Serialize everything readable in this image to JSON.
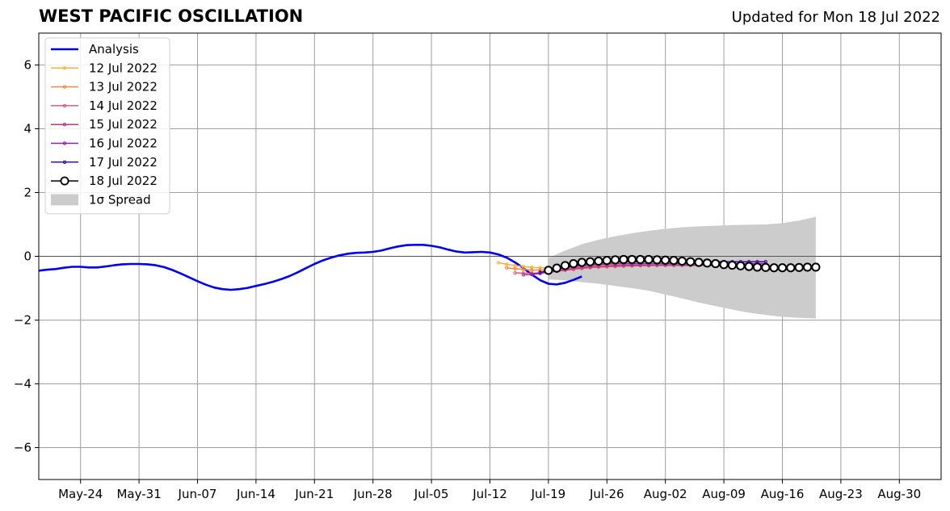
{
  "header": {
    "title": "WEST PACIFIC OSCILLATION",
    "updated": "Updated for Mon 18 Jul 2022"
  },
  "chart_data": {
    "type": "line",
    "title": "WEST PACIFIC OSCILLATION",
    "xlabel": "",
    "ylabel": "",
    "xlim": [
      "2022-05-19",
      "2022-09-04"
    ],
    "ylim": [
      -7,
      7
    ],
    "grid": true,
    "legend_position": "top-left",
    "x_ticks": [
      "May-24",
      "May-31",
      "Jun-07",
      "Jun-14",
      "Jun-21",
      "Jun-28",
      "Jul-05",
      "Jul-12",
      "Jul-19",
      "Jul-26",
      "Aug-02",
      "Aug-09",
      "Aug-16",
      "Aug-23",
      "Aug-30"
    ],
    "x_tick_dates": [
      "2022-05-24",
      "2022-05-31",
      "2022-06-07",
      "2022-06-14",
      "2022-06-21",
      "2022-06-28",
      "2022-07-05",
      "2022-07-12",
      "2022-07-19",
      "2022-07-26",
      "2022-08-02",
      "2022-08-09",
      "2022-08-16",
      "2022-08-23",
      "2022-08-30"
    ],
    "y_ticks": [
      6,
      4,
      2,
      0,
      -2,
      -4,
      -6
    ],
    "y_tick_labels": [
      "6",
      "4",
      "2",
      "0",
      "−2",
      "−4",
      "−6"
    ],
    "series": [
      {
        "name": "Analysis",
        "color": "#0000ee",
        "start": "2022-05-19",
        "values": [
          -0.45,
          -0.42,
          -0.4,
          -0.36,
          -0.33,
          -0.33,
          -0.35,
          -0.35,
          -0.32,
          -0.28,
          -0.25,
          -0.24,
          -0.24,
          -0.25,
          -0.28,
          -0.34,
          -0.43,
          -0.54,
          -0.66,
          -0.78,
          -0.89,
          -0.98,
          -1.03,
          -1.05,
          -1.03,
          -0.99,
          -0.93,
          -0.87,
          -0.8,
          -0.72,
          -0.62,
          -0.5,
          -0.37,
          -0.24,
          -0.13,
          -0.04,
          0.03,
          0.08,
          0.11,
          0.12,
          0.14,
          0.18,
          0.25,
          0.31,
          0.35,
          0.36,
          0.36,
          0.33,
          0.28,
          0.21,
          0.15,
          0.12,
          0.13,
          0.14,
          0.12,
          0.06,
          -0.04,
          -0.19,
          -0.37,
          -0.57,
          -0.75,
          -0.86,
          -0.88,
          -0.83,
          -0.74,
          -0.63
        ]
      },
      {
        "name": "12 Jul 2022",
        "color": "#f6b33b",
        "start": "2022-07-13",
        "values": [
          -0.2,
          -0.25,
          -0.29,
          -0.32,
          -0.35,
          -0.36,
          -0.36,
          -0.35,
          -0.33,
          -0.31,
          -0.3,
          -0.29,
          -0.28,
          -0.28,
          -0.27,
          -0.27,
          -0.27,
          -0.27,
          -0.27,
          -0.26,
          -0.26,
          -0.26,
          -0.26,
          -0.26,
          -0.26,
          -0.26,
          -0.26,
          -0.26,
          -0.26,
          -0.26,
          -0.26,
          -0.26,
          -0.26
        ]
      },
      {
        "name": "13 Jul 2022",
        "color": "#f08c4a",
        "start": "2022-07-14",
        "values": [
          -0.36,
          -0.39,
          -0.41,
          -0.43,
          -0.43,
          -0.42,
          -0.4,
          -0.38,
          -0.36,
          -0.35,
          -0.34,
          -0.33,
          -0.32,
          -0.31,
          -0.3,
          -0.3,
          -0.29,
          -0.29,
          -0.28,
          -0.28,
          -0.28,
          -0.28,
          -0.28,
          -0.28,
          -0.28,
          -0.28,
          -0.28,
          -0.28,
          -0.28,
          -0.28,
          -0.28,
          -0.28
        ]
      },
      {
        "name": "14 Jul 2022",
        "color": "#dc5f74",
        "start": "2022-07-15",
        "values": [
          -0.52,
          -0.53,
          -0.53,
          -0.52,
          -0.5,
          -0.47,
          -0.44,
          -0.41,
          -0.38,
          -0.36,
          -0.34,
          -0.33,
          -0.32,
          -0.31,
          -0.3,
          -0.29,
          -0.29,
          -0.28,
          -0.28,
          -0.28,
          -0.28,
          -0.28,
          -0.28,
          -0.28,
          -0.28,
          -0.28,
          -0.28,
          -0.28,
          -0.28,
          -0.28,
          -0.28
        ]
      },
      {
        "name": "15 Jul 2022",
        "color": "#b5398d",
        "start": "2022-07-16",
        "values": [
          -0.58,
          -0.57,
          -0.54,
          -0.5,
          -0.46,
          -0.42,
          -0.38,
          -0.35,
          -0.33,
          -0.31,
          -0.3,
          -0.29,
          -0.28,
          -0.28,
          -0.28,
          -0.28,
          -0.28,
          -0.28,
          -0.28,
          -0.28,
          -0.28,
          -0.28,
          -0.28,
          -0.28,
          -0.28,
          -0.28,
          -0.28,
          -0.28,
          -0.28,
          -0.28
        ]
      },
      {
        "name": "16 Jul 2022",
        "color": "#8822a6",
        "start": "2022-07-17",
        "values": [
          -0.56,
          -0.52,
          -0.46,
          -0.41,
          -0.36,
          -0.32,
          -0.29,
          -0.27,
          -0.25,
          -0.24,
          -0.23,
          -0.23,
          -0.23,
          -0.23,
          -0.23,
          -0.23,
          -0.23,
          -0.23,
          -0.23,
          -0.23,
          -0.23,
          -0.23,
          -0.23,
          -0.23,
          -0.23,
          -0.23,
          -0.23,
          -0.23,
          -0.23
        ]
      },
      {
        "name": "17 Jul 2022",
        "color": "#4a0a9a",
        "start": "2022-07-18",
        "values": [
          -0.5,
          -0.44,
          -0.38,
          -0.33,
          -0.28,
          -0.25,
          -0.22,
          -0.2,
          -0.19,
          -0.18,
          -0.17,
          -0.17,
          -0.17,
          -0.17,
          -0.17,
          -0.17,
          -0.17,
          -0.17,
          -0.17,
          -0.17,
          -0.17,
          -0.17,
          -0.17,
          -0.17,
          -0.17,
          -0.17,
          -0.17,
          -0.17
        ]
      },
      {
        "name": "18 Jul 2022",
        "color": "#000000",
        "start": "2022-07-19",
        "values": [
          -0.44,
          -0.37,
          -0.29,
          -0.23,
          -0.19,
          -0.17,
          -0.15,
          -0.13,
          -0.11,
          -0.1,
          -0.1,
          -0.1,
          -0.1,
          -0.11,
          -0.12,
          -0.13,
          -0.15,
          -0.17,
          -0.19,
          -0.21,
          -0.23,
          -0.26,
          -0.28,
          -0.3,
          -0.32,
          -0.34,
          -0.35,
          -0.36,
          -0.36,
          -0.36,
          -0.35,
          -0.34,
          -0.34
        ]
      }
    ],
    "spread": {
      "name": "1σ Spread",
      "color": "#cccccc",
      "start": "2022-07-19",
      "end": "2022-08-20",
      "upper": [
        [
          0,
          -0.05
        ],
        [
          2,
          0.18
        ],
        [
          4,
          0.38
        ],
        [
          6,
          0.52
        ],
        [
          8,
          0.63
        ],
        [
          10,
          0.72
        ],
        [
          12,
          0.8
        ],
        [
          14,
          0.86
        ],
        [
          16,
          0.91
        ],
        [
          18,
          0.94
        ],
        [
          20,
          0.96
        ],
        [
          22,
          0.98
        ],
        [
          24,
          0.99
        ],
        [
          26,
          1.0
        ],
        [
          28,
          1.04
        ],
        [
          30,
          1.12
        ],
        [
          32,
          1.24
        ]
      ],
      "lower": [
        [
          0,
          -0.72
        ],
        [
          2,
          -0.76
        ],
        [
          4,
          -0.81
        ],
        [
          6,
          -0.86
        ],
        [
          8,
          -0.93
        ],
        [
          10,
          -1.0
        ],
        [
          12,
          -1.08
        ],
        [
          14,
          -1.2
        ],
        [
          16,
          -1.32
        ],
        [
          18,
          -1.45
        ],
        [
          20,
          -1.56
        ],
        [
          22,
          -1.67
        ],
        [
          24,
          -1.77
        ],
        [
          26,
          -1.84
        ],
        [
          28,
          -1.9
        ],
        [
          30,
          -1.93
        ],
        [
          32,
          -1.95
        ]
      ]
    }
  }
}
